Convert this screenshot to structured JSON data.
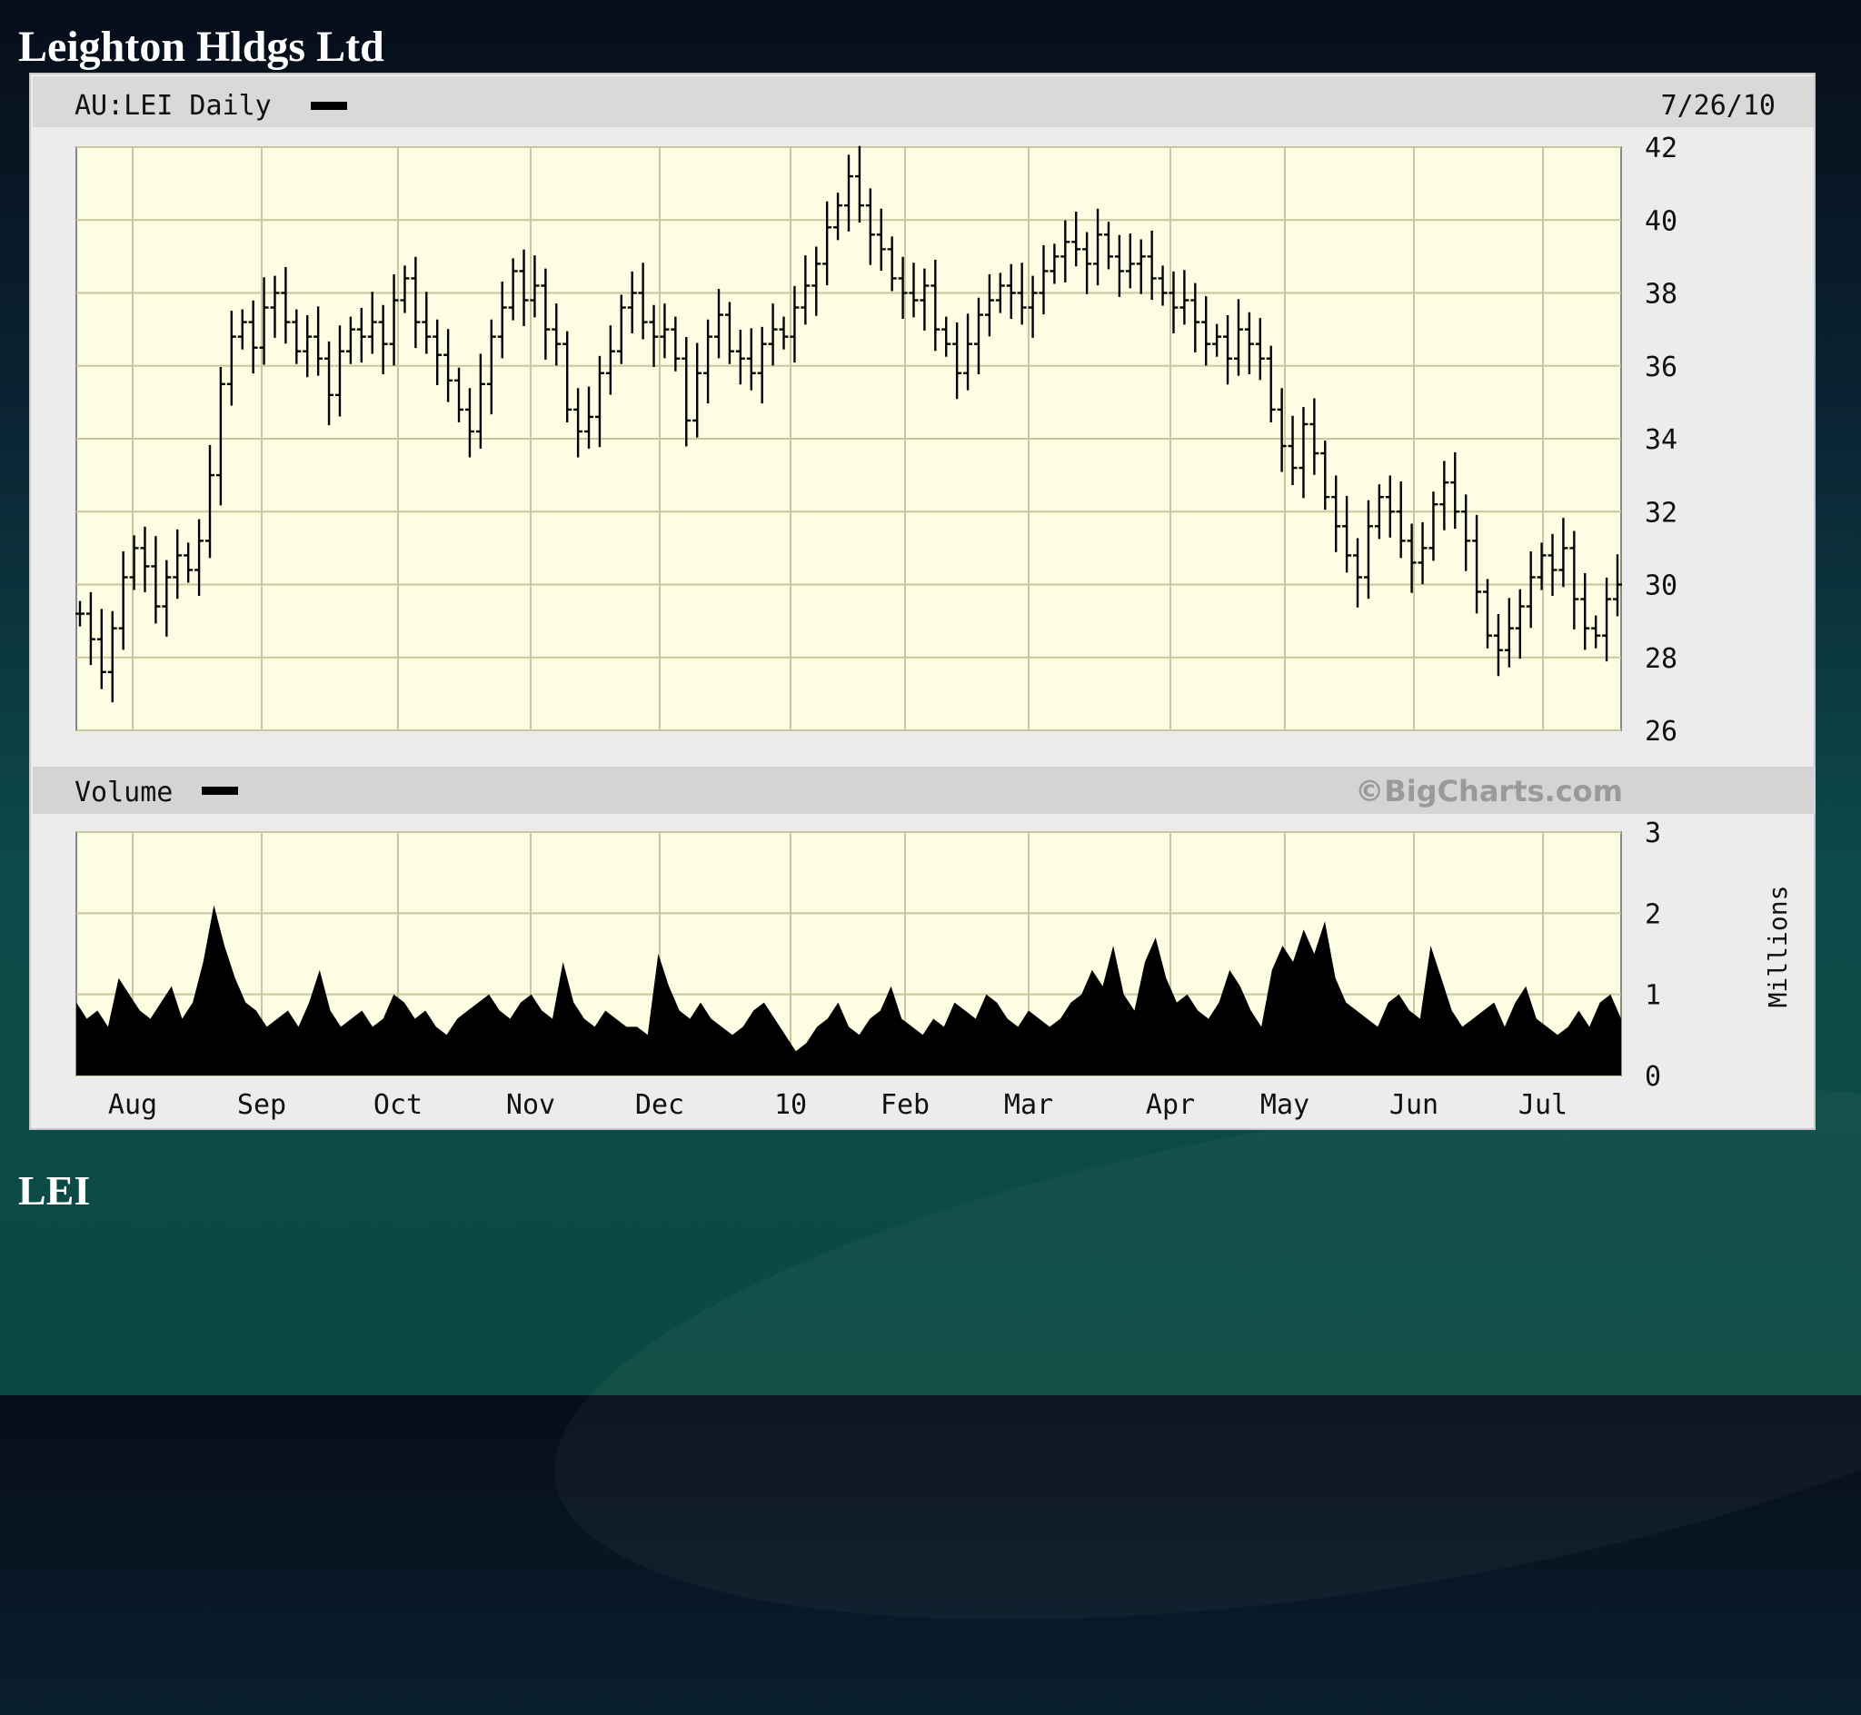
{
  "slide": {
    "title": "Leighton Hldgs Ltd",
    "caption": "LEI"
  },
  "chart_data": [
    {
      "type": "line",
      "style": "ohlc-bars",
      "title": "AU:LEI Daily",
      "date": "7/26/10",
      "ylim": [
        26,
        42
      ],
      "y_ticks": [
        42,
        40,
        38,
        36,
        34,
        32,
        30,
        28,
        26
      ],
      "axis_side": "right",
      "grid": true,
      "colors": {
        "bars": "#000000",
        "plot_bg": "#fdfde3",
        "grid": "#c8c8a0",
        "header_bg": "#d9d9d9"
      },
      "x_labels": [
        "Aug",
        "Sep",
        "Oct",
        "Nov",
        "Dec",
        "10",
        "Feb",
        "Mar",
        "Apr",
        "May",
        "Jun",
        "Jul"
      ],
      "series": [
        {
          "approx_daily_close": [
            29.2,
            28.5,
            27.6,
            28.8,
            30.2,
            31.0,
            30.5,
            29.4,
            30.2,
            30.8,
            30.4,
            31.2,
            33.0,
            35.5,
            36.8,
            37.2,
            36.5,
            37.6,
            38.0,
            37.2,
            36.4,
            36.8,
            36.2,
            35.2,
            36.4,
            37.0,
            36.8,
            37.2,
            36.6,
            37.8,
            38.4,
            37.2,
            36.8,
            36.3,
            35.6,
            34.8,
            34.2,
            35.5,
            36.8,
            37.6,
            38.6,
            37.8,
            38.2,
            37.0,
            36.6,
            34.8,
            34.2,
            34.6,
            35.8,
            36.4,
            37.6,
            38.0,
            37.2,
            36.8,
            37.0,
            36.2,
            34.5,
            35.8,
            36.8,
            37.4,
            36.4,
            36.2,
            35.8,
            36.6,
            37.0,
            36.8,
            37.6,
            38.2,
            38.8,
            39.8,
            40.4,
            41.2,
            40.4,
            39.6,
            39.2,
            38.4,
            38.0,
            37.8,
            38.2,
            37.0,
            36.6,
            35.8,
            36.6,
            37.4,
            37.8,
            38.2,
            38.0,
            37.6,
            38.0,
            38.6,
            39.0,
            39.4,
            39.2,
            38.8,
            39.6,
            39.0,
            38.6,
            38.8,
            39.0,
            38.4,
            38.0,
            37.6,
            37.8,
            37.2,
            36.6,
            36.8,
            36.2,
            37.0,
            36.6,
            36.2,
            34.8,
            33.8,
            33.2,
            34.4,
            33.6,
            32.4,
            31.6,
            30.8,
            30.2,
            31.6,
            32.4,
            32.0,
            31.2,
            30.6,
            31.0,
            32.2,
            32.8,
            32.0,
            31.2,
            29.8,
            28.6,
            28.2,
            28.8,
            29.4,
            30.2,
            30.8,
            30.4,
            31.0,
            29.6,
            28.8,
            28.6,
            29.6,
            30.0
          ]
        }
      ]
    },
    {
      "type": "area",
      "title": "Volume",
      "watermark": "©BigCharts.com",
      "ylabel": "Millions",
      "ylim": [
        0,
        3
      ],
      "y_ticks": [
        3,
        2,
        1,
        0
      ],
      "x_labels": [
        "Aug",
        "Sep",
        "Oct",
        "Nov",
        "Dec",
        "10",
        "Feb",
        "Mar",
        "Apr",
        "May",
        "Jun",
        "Jul"
      ],
      "series": [
        {
          "approx_daily_volume": [
            0.9,
            0.7,
            0.8,
            0.6,
            1.2,
            1.0,
            0.8,
            0.7,
            0.9,
            1.1,
            0.7,
            0.9,
            1.4,
            2.1,
            1.6,
            1.2,
            0.9,
            0.8,
            0.6,
            0.7,
            0.8,
            0.6,
            0.9,
            1.3,
            0.8,
            0.6,
            0.7,
            0.8,
            0.6,
            0.7,
            1.0,
            0.9,
            0.7,
            0.8,
            0.6,
            0.5,
            0.7,
            0.8,
            0.9,
            1.0,
            0.8,
            0.7,
            0.9,
            1.0,
            0.8,
            0.7,
            1.4,
            0.9,
            0.7,
            0.6,
            0.8,
            0.7,
            0.6,
            0.6,
            0.5,
            1.5,
            1.1,
            0.8,
            0.7,
            0.9,
            0.7,
            0.6,
            0.5,
            0.6,
            0.8,
            0.9,
            0.7,
            0.5,
            0.3,
            0.4,
            0.6,
            0.7,
            0.9,
            0.6,
            0.5,
            0.7,
            0.8,
            1.1,
            0.7,
            0.6,
            0.5,
            0.7,
            0.6,
            0.9,
            0.8,
            0.7,
            1.0,
            0.9,
            0.7,
            0.6,
            0.8,
            0.7,
            0.6,
            0.7,
            0.9,
            1.0,
            1.3,
            1.1,
            1.6,
            1.0,
            0.8,
            1.4,
            1.7,
            1.2,
            0.9,
            1.0,
            0.8,
            0.7,
            0.9,
            1.3,
            1.1,
            0.8,
            0.6,
            1.3,
            1.6,
            1.4,
            1.8,
            1.5,
            1.9,
            1.2,
            0.9,
            0.8,
            0.7,
            0.6,
            0.9,
            1.0,
            0.8,
            0.7,
            1.6,
            1.2,
            0.8,
            0.6,
            0.7,
            0.8,
            0.9,
            0.6,
            0.9,
            1.1,
            0.7,
            0.6,
            0.5,
            0.6,
            0.8,
            0.6,
            0.9,
            1.0,
            0.7
          ]
        }
      ]
    }
  ]
}
